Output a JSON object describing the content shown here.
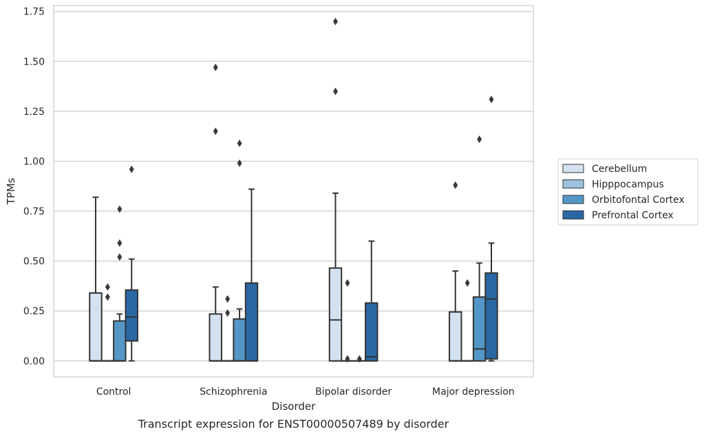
{
  "chart_data": {
    "type": "box",
    "caption": "Transcript expression for ENST00000507489 by disorder",
    "xlabel": "Disorder",
    "ylabel": "TPMs",
    "ylim": [
      -0.08,
      1.78
    ],
    "yticks": [
      "0.00",
      "0.25",
      "0.50",
      "0.75",
      "1.00",
      "1.25",
      "1.50",
      "1.75"
    ],
    "grid": true,
    "legend_position": "right",
    "categories": [
      "Control",
      "Schizophrenia",
      "Bipolar disorder",
      "Major depression"
    ],
    "series": [
      {
        "name": "Cerebellum",
        "color": "#d4e2f0",
        "boxes": [
          {
            "q1": 0.0,
            "median": 0.0,
            "q3": 0.34,
            "whislo": 0.0,
            "whishi": 0.82,
            "fliers": []
          },
          {
            "q1": 0.0,
            "median": 0.0,
            "q3": 0.235,
            "whislo": 0.0,
            "whishi": 0.37,
            "fliers": [
              1.15,
              1.47
            ]
          },
          {
            "q1": 0.0,
            "median": 0.205,
            "q3": 0.465,
            "whislo": 0.0,
            "whishi": 0.84,
            "fliers": [
              1.35,
              1.7
            ]
          },
          {
            "q1": 0.0,
            "median": 0.0,
            "q3": 0.245,
            "whislo": 0.0,
            "whishi": 0.45,
            "fliers": [
              0.88
            ]
          }
        ]
      },
      {
        "name": "Hipppocampus",
        "color": "#9cc3de",
        "boxes": [
          {
            "q1": 0.0,
            "median": 0.0,
            "q3": 0.0,
            "whislo": 0.0,
            "whishi": 0.0,
            "fliers": [
              0.32,
              0.37
            ]
          },
          {
            "q1": 0.0,
            "median": 0.0,
            "q3": 0.0,
            "whislo": 0.0,
            "whishi": 0.0,
            "fliers": [
              0.24,
              0.31
            ]
          },
          {
            "q1": 0.0,
            "median": 0.0,
            "q3": 0.0,
            "whislo": 0.0,
            "whishi": 0.0,
            "fliers": [
              0.01,
              0.39
            ]
          },
          {
            "q1": 0.0,
            "median": 0.0,
            "q3": 0.0,
            "whislo": 0.0,
            "whishi": 0.0,
            "fliers": [
              0.39
            ]
          }
        ]
      },
      {
        "name": "Orbitofontal Cortex",
        "color": "#5497c6",
        "boxes": [
          {
            "q1": 0.0,
            "median": 0.0,
            "q3": 0.2,
            "whislo": 0.0,
            "whishi": 0.235,
            "fliers": [
              0.52,
              0.59,
              0.76
            ]
          },
          {
            "q1": 0.0,
            "median": 0.0,
            "q3": 0.21,
            "whislo": 0.0,
            "whishi": 0.26,
            "fliers": [
              0.99,
              1.09
            ]
          },
          {
            "q1": 0.0,
            "median": 0.0,
            "q3": 0.0,
            "whislo": 0.0,
            "whishi": 0.0,
            "fliers": [
              0.01
            ]
          },
          {
            "q1": 0.0,
            "median": 0.06,
            "q3": 0.32,
            "whislo": 0.0,
            "whishi": 0.49,
            "fliers": [
              1.11
            ]
          }
        ]
      },
      {
        "name": "Prefrontal Cortex",
        "color": "#2a68a5",
        "boxes": [
          {
            "q1": 0.1,
            "median": 0.22,
            "q3": 0.355,
            "whislo": 0.0,
            "whishi": 0.51,
            "fliers": [
              0.96
            ]
          },
          {
            "q1": 0.0,
            "median": 0.0,
            "q3": 0.39,
            "whislo": 0.0,
            "whishi": 0.86,
            "fliers": []
          },
          {
            "q1": 0.0,
            "median": 0.02,
            "q3": 0.29,
            "whislo": 0.0,
            "whishi": 0.6,
            "fliers": []
          },
          {
            "q1": 0.01,
            "median": 0.31,
            "q3": 0.44,
            "whislo": 0.0,
            "whishi": 0.59,
            "fliers": [
              1.31
            ]
          }
        ]
      }
    ]
  }
}
